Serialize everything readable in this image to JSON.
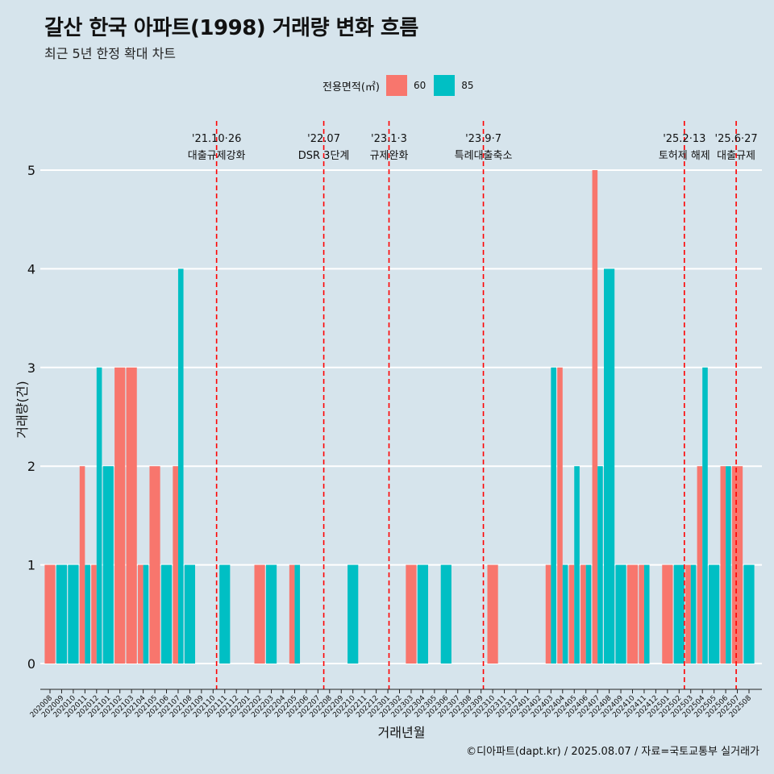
{
  "title": "갈산 한국 아파트(1998) 거래량 변화 흐름",
  "subtitle": "최근 5년 한정 확대 차트",
  "caption": "©디아파트(dapt.kr) / 2025.08.07 / 자료=국토교통부 실거래가",
  "colors": {
    "s60": "#f8766d",
    "s85": "#00bfc4",
    "background": "#d6e4ec",
    "event_line": "#ff0000"
  },
  "chart_data": {
    "type": "bar",
    "xlabel": "거래년월",
    "ylabel": "거래량(건)",
    "ylim": [
      0,
      5
    ],
    "yticks": [
      0,
      1,
      2,
      3,
      4,
      5
    ],
    "legend": {
      "title": "전용면적(㎡)",
      "position": "top",
      "entries": [
        "60",
        "85"
      ]
    },
    "months": [
      "202008",
      "202009",
      "202010",
      "202011",
      "202012",
      "202101",
      "202102",
      "202103",
      "202104",
      "202105",
      "202106",
      "202107",
      "202108",
      "202109",
      "202110",
      "202111",
      "202112",
      "202201",
      "202202",
      "202203",
      "202204",
      "202205",
      "202206",
      "202207",
      "202208",
      "202209",
      "202210",
      "202211",
      "202212",
      "202301",
      "202302",
      "202303",
      "202304",
      "202305",
      "202306",
      "202307",
      "202308",
      "202309",
      "202310",
      "202311",
      "202312",
      "202401",
      "202402",
      "202403",
      "202404",
      "202405",
      "202406",
      "202407",
      "202408",
      "202409",
      "202410",
      "202411",
      "202412",
      "202501",
      "202502",
      "202503",
      "202504",
      "202505",
      "202506",
      "202507",
      "202508"
    ],
    "series": [
      {
        "name": "60",
        "values": [
          1,
          0,
          0,
          2,
          1,
          0,
          3,
          3,
          1,
          2,
          0,
          2,
          0,
          0,
          0,
          0,
          0,
          0,
          1,
          0,
          0,
          1,
          0,
          0,
          0,
          0,
          0,
          0,
          0,
          0,
          0,
          1,
          0,
          0,
          0,
          0,
          0,
          0,
          1,
          0,
          0,
          0,
          0,
          1,
          3,
          1,
          1,
          5,
          0,
          0,
          1,
          1,
          0,
          1,
          0,
          1,
          2,
          0,
          2,
          2,
          0
        ]
      },
      {
        "name": "85",
        "values": [
          0,
          1,
          1,
          1,
          3,
          2,
          0,
          0,
          1,
          0,
          1,
          4,
          1,
          0,
          0,
          1,
          0,
          0,
          0,
          1,
          0,
          1,
          0,
          0,
          0,
          0,
          1,
          0,
          0,
          0,
          0,
          0,
          1,
          0,
          1,
          0,
          0,
          0,
          0,
          0,
          0,
          0,
          0,
          3,
          1,
          2,
          1,
          2,
          4,
          1,
          0,
          1,
          0,
          0,
          1,
          1,
          3,
          1,
          2,
          0,
          1
        ]
      }
    ],
    "events": [
      {
        "date": "'21.10·26",
        "label": "대출규제강화",
        "month": "202110",
        "offset": 0.3
      },
      {
        "date": "'22.07",
        "label": "DSR 3단계",
        "month": "202207",
        "offset": 0.5
      },
      {
        "date": "'23.1·3",
        "label": "규제완화",
        "month": "202301",
        "offset": 0.1
      },
      {
        "date": "'23.9·7",
        "label": "특례대출축소",
        "month": "202309",
        "offset": 0.2
      },
      {
        "date": "'25.2·13",
        "label": "토허제 해제",
        "month": "202502",
        "offset": 0.45
      },
      {
        "date": "'25.6·27",
        "label": "대출규제",
        "month": "202506",
        "offset": 0.9
      }
    ]
  }
}
